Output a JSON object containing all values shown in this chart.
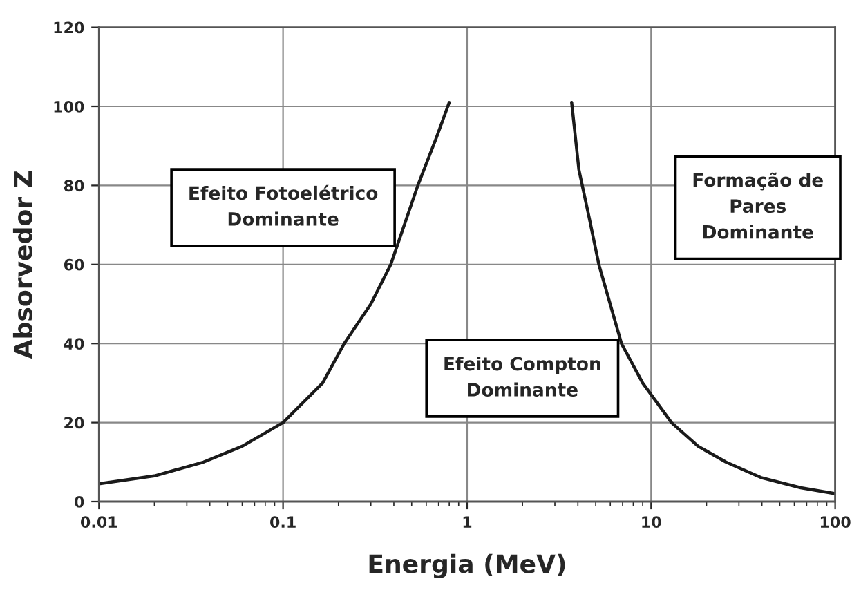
{
  "chart_data": {
    "type": "line",
    "xlabel": "Energia (MeV)",
    "ylabel": "Absorvedor Z",
    "log": "x",
    "grid": true,
    "xlim": [
      0.01,
      100
    ],
    "xticks": [
      {
        "value": 0.01,
        "label": "0.01"
      },
      {
        "value": 0.1,
        "label": "0.1"
      },
      {
        "value": 1,
        "label": "1"
      },
      {
        "value": 10,
        "label": "10"
      },
      {
        "value": 100,
        "label": "100"
      }
    ],
    "ylim": [
      0,
      120
    ],
    "yticks": [
      0,
      20,
      40,
      60,
      80,
      100,
      120
    ],
    "series": [
      {
        "color": "#1a1a1a",
        "x": [
          0.01,
          0.02,
          0.037,
          0.06,
          0.1,
          0.164,
          0.215,
          0.3,
          0.385,
          0.54,
          0.68,
          0.8
        ],
        "values": [
          4.5,
          6.5,
          10,
          14,
          20,
          30,
          40,
          50,
          60,
          80,
          92,
          101
        ]
      },
      {
        "color": "#1a1a1a",
        "x": [
          3.7,
          4.05,
          4.6,
          5.2,
          6.9,
          9,
          12.9,
          18,
          25.5,
          40,
          65,
          100
        ],
        "values": [
          101,
          84,
          72,
          60,
          40,
          30,
          20,
          14,
          10,
          6,
          3.5,
          2
        ]
      }
    ],
    "annotations": [
      "Efeito Fotoelétrico\nDominante",
      "Efeito Compton\nDominante",
      "Formação de\nPares\nDominante"
    ]
  }
}
